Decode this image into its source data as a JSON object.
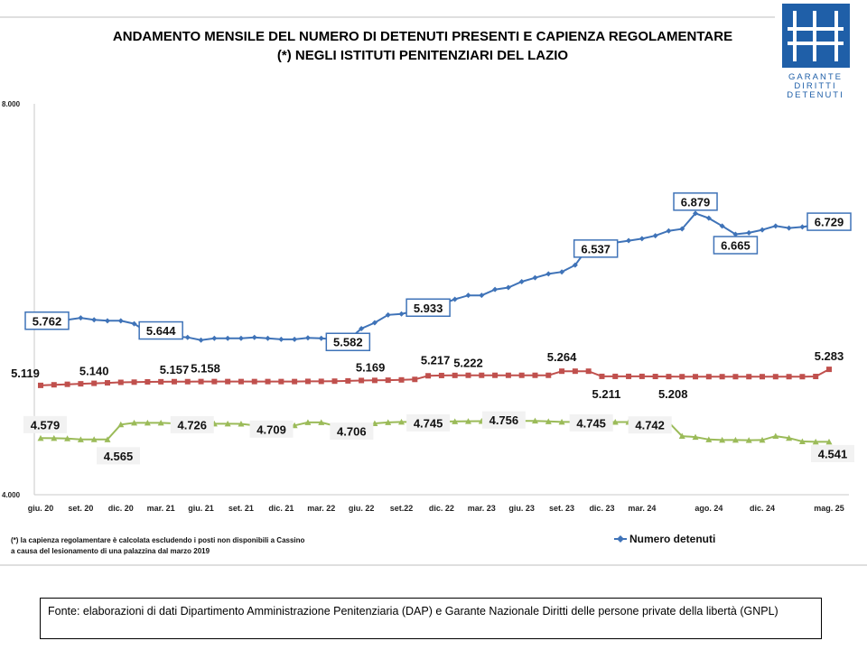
{
  "title": {
    "line1": "ANDAMENTO MENSILE  DEL NUMERO DI DETENUTI PRESENTI E CAPIENZA REGOLAMENTARE",
    "line2": "(*) NEGLI ISTITUTI PENITENZIARI DEL LAZIO"
  },
  "logo": {
    "line1": "GARANTE",
    "line2": "DIRITTI",
    "line3": "DETENUTI",
    "color": "#1f5fa8"
  },
  "note": {
    "line1": "(*) la capienza regolamentare è calcolata escludendo i posti non disponibili a Cassino",
    "line2": "a causa del lesionamento di una palazzina dal marzo 2019"
  },
  "legend": {
    "label": "Numero detenuti"
  },
  "source": "Fonte: elaborazioni di dati Dipartimento  Amministrazione  Penitenziaria (DAP)  e Garante Nazionale Diritti delle persone private della libertà (GNPL)",
  "chart_data": {
    "type": "line",
    "title": "ANDAMENTO MENSILE  DEL NUMERO DI DETENUTI PRESENTI E CAPIENZA REGOLAMENTARE (*) NEGLI ISTITUTI PENITENZIARI DEL LAZIO",
    "ylim": [
      4000,
      8000
    ],
    "y_tick_labels": [
      "8.000",
      "4.000"
    ],
    "n_points": 60,
    "x_start": "giu. 20",
    "x_end": "mag. 25",
    "x_tick_labels": [
      {
        "index": 0,
        "label": "giu. 20"
      },
      {
        "index": 3,
        "label": "set. 20"
      },
      {
        "index": 6,
        "label": "dic. 20"
      },
      {
        "index": 9,
        "label": "mar. 21"
      },
      {
        "index": 12,
        "label": "giu. 21"
      },
      {
        "index": 15,
        "label": "set. 21"
      },
      {
        "index": 18,
        "label": "dic. 21"
      },
      {
        "index": 21,
        "label": "mar. 22"
      },
      {
        "index": 24,
        "label": "giu. 22"
      },
      {
        "index": 27,
        "label": "set.22"
      },
      {
        "index": 30,
        "label": "dic. 22"
      },
      {
        "index": 33,
        "label": "mar. 23"
      },
      {
        "index": 36,
        "label": "giu. 23"
      },
      {
        "index": 39,
        "label": "set. 23"
      },
      {
        "index": 42,
        "label": "dic. 23"
      },
      {
        "index": 45,
        "label": "mar. 24"
      },
      {
        "index": 50,
        "label": "ago. 24"
      },
      {
        "index": 54,
        "label": "dic. 24"
      },
      {
        "index": 59,
        "label": "mag. 25"
      }
    ],
    "grid": false,
    "legend_position": "bottom-right",
    "series": [
      {
        "name": "Numero detenuti",
        "color": "#3f73b8",
        "marker": "diamond",
        "values": [
          5762,
          5770,
          5790,
          5810,
          5790,
          5780,
          5780,
          5750,
          5660,
          5644,
          5620,
          5610,
          5582,
          5600,
          5600,
          5600,
          5610,
          5600,
          5590,
          5590,
          5605,
          5600,
          5590,
          5582,
          5700,
          5760,
          5840,
          5850,
          5880,
          5933,
          5950,
          6000,
          6040,
          6040,
          6100,
          6120,
          6180,
          6220,
          6260,
          6280,
          6350,
          6537,
          6550,
          6580,
          6600,
          6620,
          6650,
          6700,
          6720,
          6879,
          6830,
          6750,
          6665,
          6680,
          6710,
          6750,
          6729,
          6740,
          6760,
          6729
        ]
      },
      {
        "name": "Capienza regolamentare",
        "color": "#c0504d",
        "marker": "square",
        "values": [
          5119,
          5125,
          5130,
          5135,
          5140,
          5145,
          5150,
          5152,
          5155,
          5156,
          5157,
          5157,
          5158,
          5158,
          5158,
          5158,
          5158,
          5158,
          5158,
          5158,
          5160,
          5160,
          5162,
          5165,
          5169,
          5170,
          5172,
          5175,
          5180,
          5217,
          5220,
          5221,
          5222,
          5222,
          5222,
          5222,
          5222,
          5222,
          5222,
          5264,
          5264,
          5264,
          5211,
          5211,
          5211,
          5211,
          5210,
          5209,
          5208,
          5208,
          5208,
          5208,
          5208,
          5208,
          5208,
          5208,
          5208,
          5208,
          5210,
          5283
        ]
      },
      {
        "name": "",
        "color": "#9bbb59",
        "marker": "triangle",
        "values": [
          4579,
          4578,
          4575,
          4565,
          4566,
          4565,
          4718,
          4735,
          4735,
          4735,
          4730,
          4726,
          4718,
          4726,
          4726,
          4725,
          4709,
          4709,
          4709,
          4709,
          4740,
          4740,
          4706,
          4706,
          4706,
          4730,
          4740,
          4745,
          4745,
          4745,
          4748,
          4750,
          4752,
          4753,
          4754,
          4756,
          4756,
          4756,
          4750,
          4745,
          4745,
          4745,
          4745,
          4744,
          4744,
          4742,
          4742,
          4742,
          4600,
          4590,
          4565,
          4560,
          4560,
          4558,
          4560,
          4600,
          4580,
          4545,
          4541,
          4541
        ]
      }
    ],
    "data_labels": [
      {
        "series": 0,
        "index": 0,
        "text": "5.762",
        "boxed": true
      },
      {
        "series": 0,
        "index": 9,
        "text": "5.644",
        "boxed": true
      },
      {
        "series": 0,
        "index": 23,
        "text": "5.582",
        "boxed": true
      },
      {
        "series": 0,
        "index": 29,
        "text": "5.933",
        "boxed": true
      },
      {
        "series": 0,
        "index": 41,
        "text": "6.537",
        "boxed": true
      },
      {
        "series": 0,
        "index": 49,
        "text": "6.879",
        "boxed": true
      },
      {
        "series": 0,
        "index": 52,
        "text": "6.665",
        "boxed": true
      },
      {
        "series": 0,
        "index": 59,
        "text": "6.729",
        "boxed": true
      },
      {
        "series": 1,
        "index": 0,
        "text": "5.119",
        "boxed": false
      },
      {
        "series": 1,
        "index": 4,
        "text": "5.140",
        "boxed": false
      },
      {
        "series": 1,
        "index": 10,
        "text": "5.157",
        "boxed": false
      },
      {
        "series": 1,
        "index": 12,
        "text": "5.158",
        "boxed": false
      },
      {
        "series": 1,
        "index": 24,
        "text": "5.169",
        "boxed": false
      },
      {
        "series": 1,
        "index": 29,
        "text": "5.217",
        "boxed": false
      },
      {
        "series": 1,
        "index": 32,
        "text": "5.222",
        "boxed": false
      },
      {
        "series": 1,
        "index": 39,
        "text": "5.264",
        "boxed": false
      },
      {
        "series": 1,
        "index": 42,
        "text": "5.211",
        "boxed": false
      },
      {
        "series": 1,
        "index": 48,
        "text": "5.208",
        "boxed": false
      },
      {
        "series": 1,
        "index": 59,
        "text": "5.283",
        "boxed": false
      },
      {
        "series": 2,
        "index": 0,
        "text": "4.579",
        "boxed": false
      },
      {
        "series": 2,
        "index": 5,
        "text": "4.565",
        "boxed": false
      },
      {
        "series": 2,
        "index": 11,
        "text": "4.726",
        "boxed": false
      },
      {
        "series": 2,
        "index": 17,
        "text": "4.709",
        "boxed": false
      },
      {
        "series": 2,
        "index": 23,
        "text": "4.706",
        "boxed": false
      },
      {
        "series": 2,
        "index": 29,
        "text": "4.745",
        "boxed": false
      },
      {
        "series": 2,
        "index": 35,
        "text": "4.756",
        "boxed": false
      },
      {
        "series": 2,
        "index": 41,
        "text": "4.745",
        "boxed": false
      },
      {
        "series": 2,
        "index": 46,
        "text": "4.742",
        "boxed": false
      },
      {
        "series": 2,
        "index": 59,
        "text": "4.541",
        "boxed": false
      }
    ]
  }
}
